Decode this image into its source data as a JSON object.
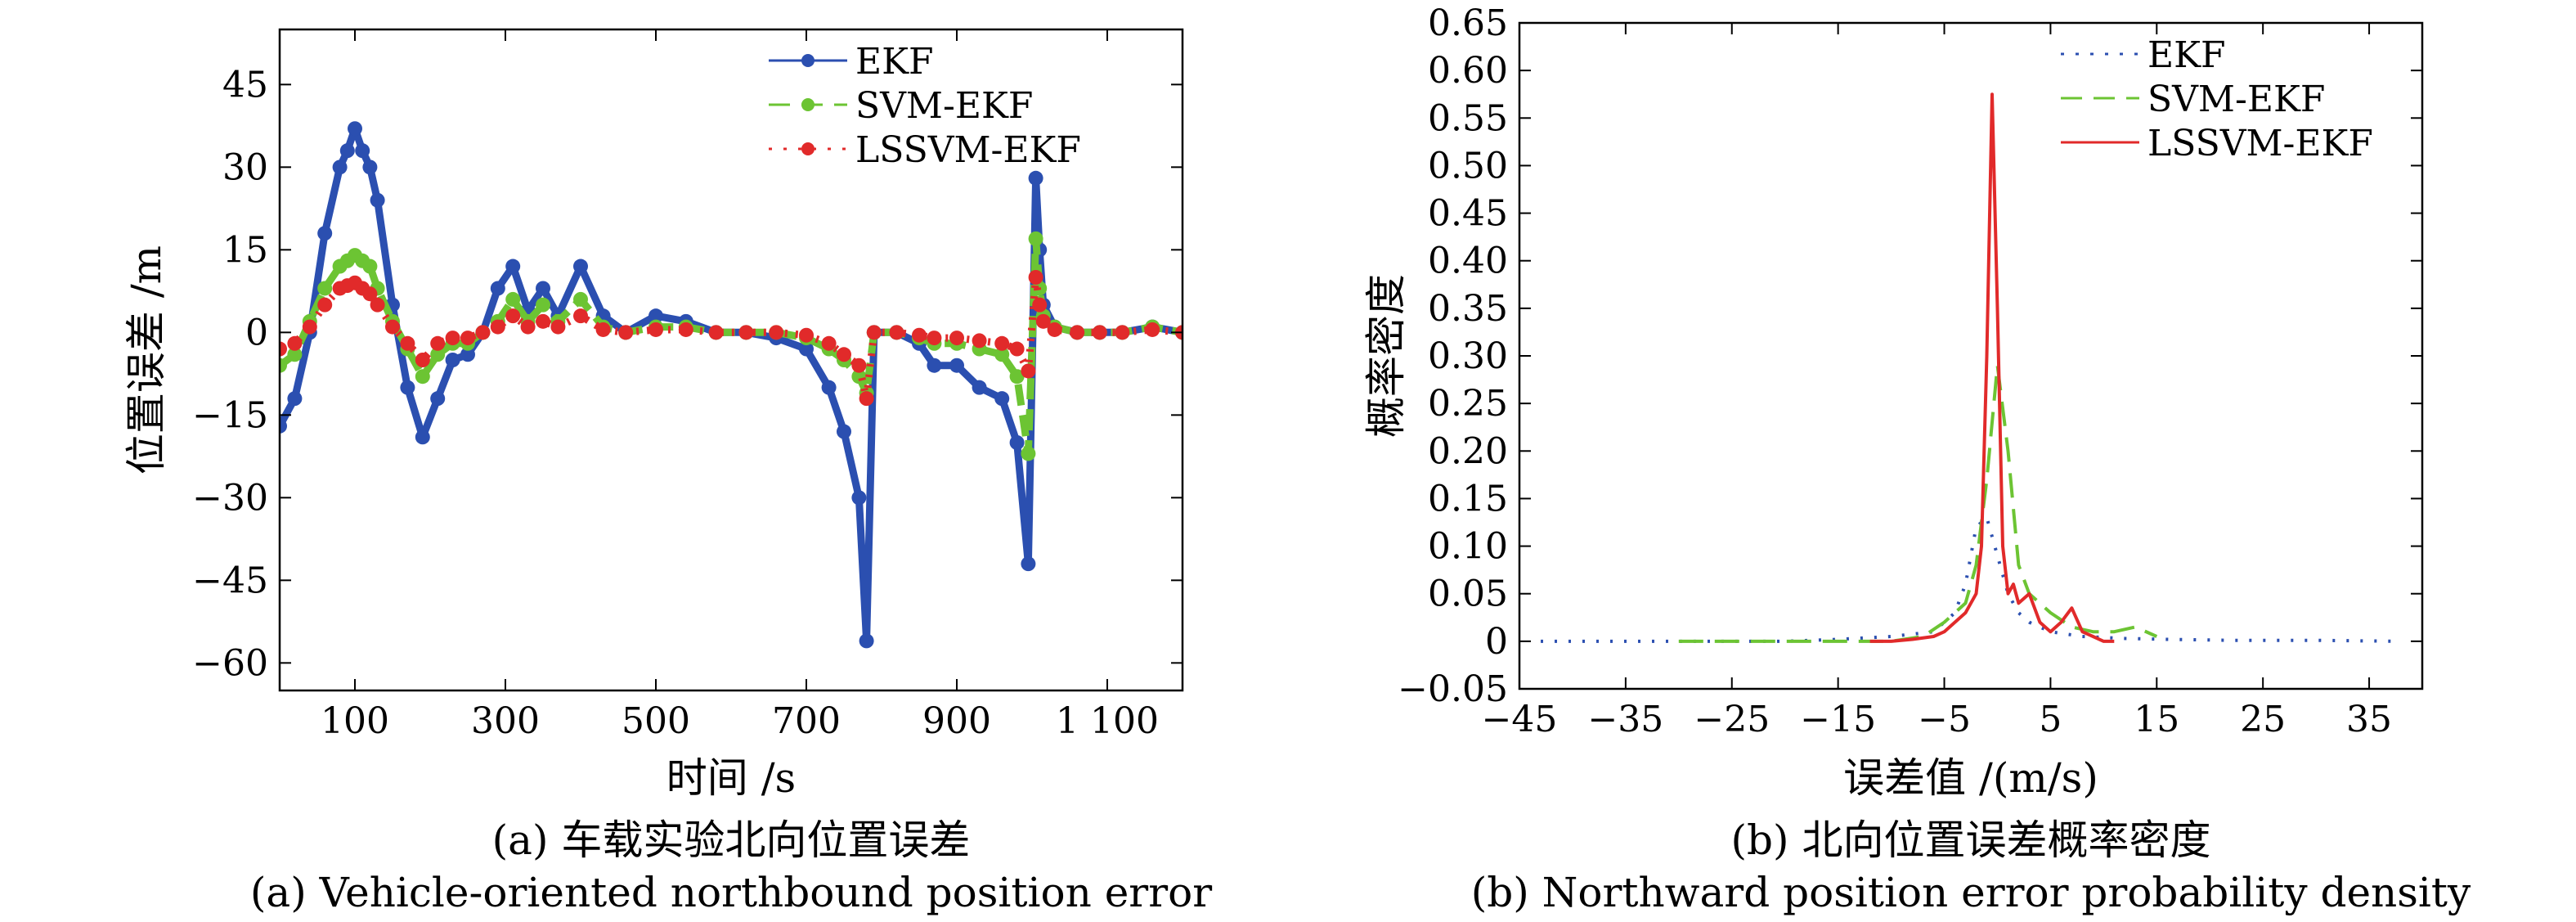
{
  "chart_data": [
    {
      "type": "line",
      "caption_cn": "(a) 车载实验北向位置误差",
      "caption_en": "(a) Vehicle-oriented northbound position error",
      "xlabel": "时间 /s",
      "ylabel": "位置误差 /m",
      "xlim": [
        0,
        1200
      ],
      "ylim": [
        -65,
        55
      ],
      "xticks": [
        100,
        300,
        500,
        700,
        900,
        1100
      ],
      "xtick_labels": [
        "100",
        "300",
        "500",
        "700",
        "900",
        "1 100"
      ],
      "yticks": [
        45,
        30,
        15,
        0,
        -15,
        -30,
        -45,
        -60
      ],
      "ytick_labels": [
        "45",
        "30",
        "15",
        "0",
        "−15",
        "−30",
        "−45",
        "−60"
      ],
      "legend_position": "top-right",
      "x": [
        0,
        20,
        40,
        60,
        80,
        90,
        100,
        110,
        120,
        130,
        150,
        170,
        190,
        210,
        230,
        250,
        270,
        290,
        310,
        330,
        350,
        370,
        400,
        430,
        460,
        500,
        540,
        580,
        620,
        660,
        700,
        730,
        750,
        770,
        780,
        790,
        820,
        850,
        870,
        900,
        930,
        960,
        980,
        995,
        1005,
        1010,
        1015,
        1030,
        1060,
        1090,
        1120,
        1160,
        1200
      ],
      "series": [
        {
          "name": "EKF",
          "color": "#2b4fb0",
          "style": "solid-dot",
          "values": [
            -17,
            -12,
            0,
            18,
            30,
            33,
            37,
            33,
            30,
            24,
            5,
            -10,
            -19,
            -12,
            -5,
            -4,
            0,
            8,
            12,
            4,
            8,
            3,
            12,
            3,
            0,
            3,
            2,
            0,
            0,
            -1,
            -3,
            -10,
            -18,
            -30,
            -56,
            0,
            0,
            -2,
            -6,
            -6,
            -10,
            -12,
            -20,
            -42,
            28,
            15,
            5,
            1,
            0,
            0,
            0,
            1,
            0
          ]
        },
        {
          "name": "SVM-EKF",
          "color": "#6cc433",
          "style": "dashed-dot",
          "values": [
            -6,
            -4,
            2,
            8,
            12,
            13,
            14,
            13,
            12,
            8,
            2,
            -3,
            -8,
            -4,
            -2,
            -2,
            0,
            2,
            6,
            2,
            5,
            2,
            6,
            1,
            0,
            1,
            1,
            0,
            0,
            0,
            -1,
            -3,
            -5,
            -8,
            -11,
            0,
            0,
            -1,
            -2,
            -2,
            -3,
            -4,
            -8,
            -22,
            17,
            8,
            3,
            1,
            0,
            0,
            0,
            1,
            0
          ]
        },
        {
          "name": "LSSVM-EKF",
          "color": "#e12a2a",
          "style": "dotted-dot",
          "values": [
            -3,
            -2,
            1,
            5,
            8,
            8.5,
            9,
            8,
            7,
            5,
            1,
            -2,
            -5,
            -2,
            -1,
            -1,
            0,
            1,
            3,
            1,
            2,
            1,
            3,
            0.5,
            0,
            0.5,
            0.5,
            0,
            0,
            0,
            -0.5,
            -2,
            -4,
            -6,
            -12,
            0,
            0,
            -0.5,
            -1,
            -1,
            -1.5,
            -2,
            -3,
            -7,
            10,
            5,
            2,
            0.5,
            0,
            0,
            0,
            0.5,
            0
          ]
        }
      ]
    },
    {
      "type": "line",
      "caption_cn": "(b) 北向位置误差概率密度",
      "caption_en": "(b) Northward position error probability density",
      "xlabel": "误差值 /(m/s)",
      "ylabel": "概率密度",
      "xlim": [
        -45,
        40
      ],
      "ylim": [
        -0.05,
        0.65
      ],
      "xticks": [
        -45,
        -35,
        -25,
        -15,
        -5,
        5,
        15,
        25,
        35
      ],
      "xtick_labels": [
        "−45",
        "−35",
        "−25",
        "−15",
        "−5",
        "5",
        "15",
        "25",
        "35"
      ],
      "yticks": [
        0.65,
        0.6,
        0.55,
        0.5,
        0.45,
        0.4,
        0.35,
        0.3,
        0.25,
        0.2,
        0.15,
        0.1,
        0.05,
        0,
        -0.05
      ],
      "ytick_labels": [
        "0.65",
        "0.60",
        "0.55",
        "0.50",
        "0.45",
        "0.40",
        "0.35",
        "0.30",
        "0.25",
        "0.20",
        "0.15",
        "0.10",
        "0.05",
        "0",
        "−0.05"
      ],
      "legend_position": "top-right",
      "series": [
        {
          "name": "EKF",
          "color": "#2b4fb0",
          "style": "dotted",
          "x": [
            -43,
            -38,
            -32,
            -25,
            -20,
            -15,
            -10,
            -6,
            -4,
            -3,
            -2,
            -1,
            0,
            1,
            2,
            3,
            5,
            8,
            12,
            16,
            22,
            30,
            38
          ],
          "values": [
            0,
            0,
            0,
            0,
            0,
            0.002,
            0.005,
            0.01,
            0.03,
            0.06,
            0.12,
            0.13,
            0.09,
            0.05,
            0.03,
            0.02,
            0.01,
            0.005,
            0.003,
            0.002,
            0.001,
            0.001,
            0
          ]
        },
        {
          "name": "SVM-EKF",
          "color": "#6cc433",
          "style": "dashed",
          "x": [
            -30,
            -25,
            -20,
            -15,
            -10,
            -7,
            -5,
            -3,
            -2,
            -1,
            0,
            1,
            2,
            3,
            5,
            7,
            9,
            11,
            13,
            15
          ],
          "values": [
            0,
            0,
            0,
            0,
            0,
            0.005,
            0.02,
            0.04,
            0.08,
            0.17,
            0.29,
            0.2,
            0.08,
            0.05,
            0.03,
            0.015,
            0.01,
            0.01,
            0.015,
            0.005
          ]
        },
        {
          "name": "LSSVM-EKF",
          "color": "#e12a2a",
          "style": "solid",
          "x": [
            -12,
            -10,
            -8,
            -6,
            -5,
            -4,
            -3,
            -2,
            -1.5,
            -1,
            -0.5,
            0,
            0.5,
            1,
            1.5,
            2,
            3,
            4,
            5,
            6,
            7,
            8,
            9,
            10,
            11
          ],
          "values": [
            0,
            0,
            0.002,
            0.005,
            0.01,
            0.02,
            0.03,
            0.05,
            0.1,
            0.3,
            0.575,
            0.35,
            0.1,
            0.05,
            0.06,
            0.04,
            0.05,
            0.02,
            0.01,
            0.02,
            0.035,
            0.01,
            0.005,
            0,
            0
          ]
        }
      ]
    }
  ]
}
